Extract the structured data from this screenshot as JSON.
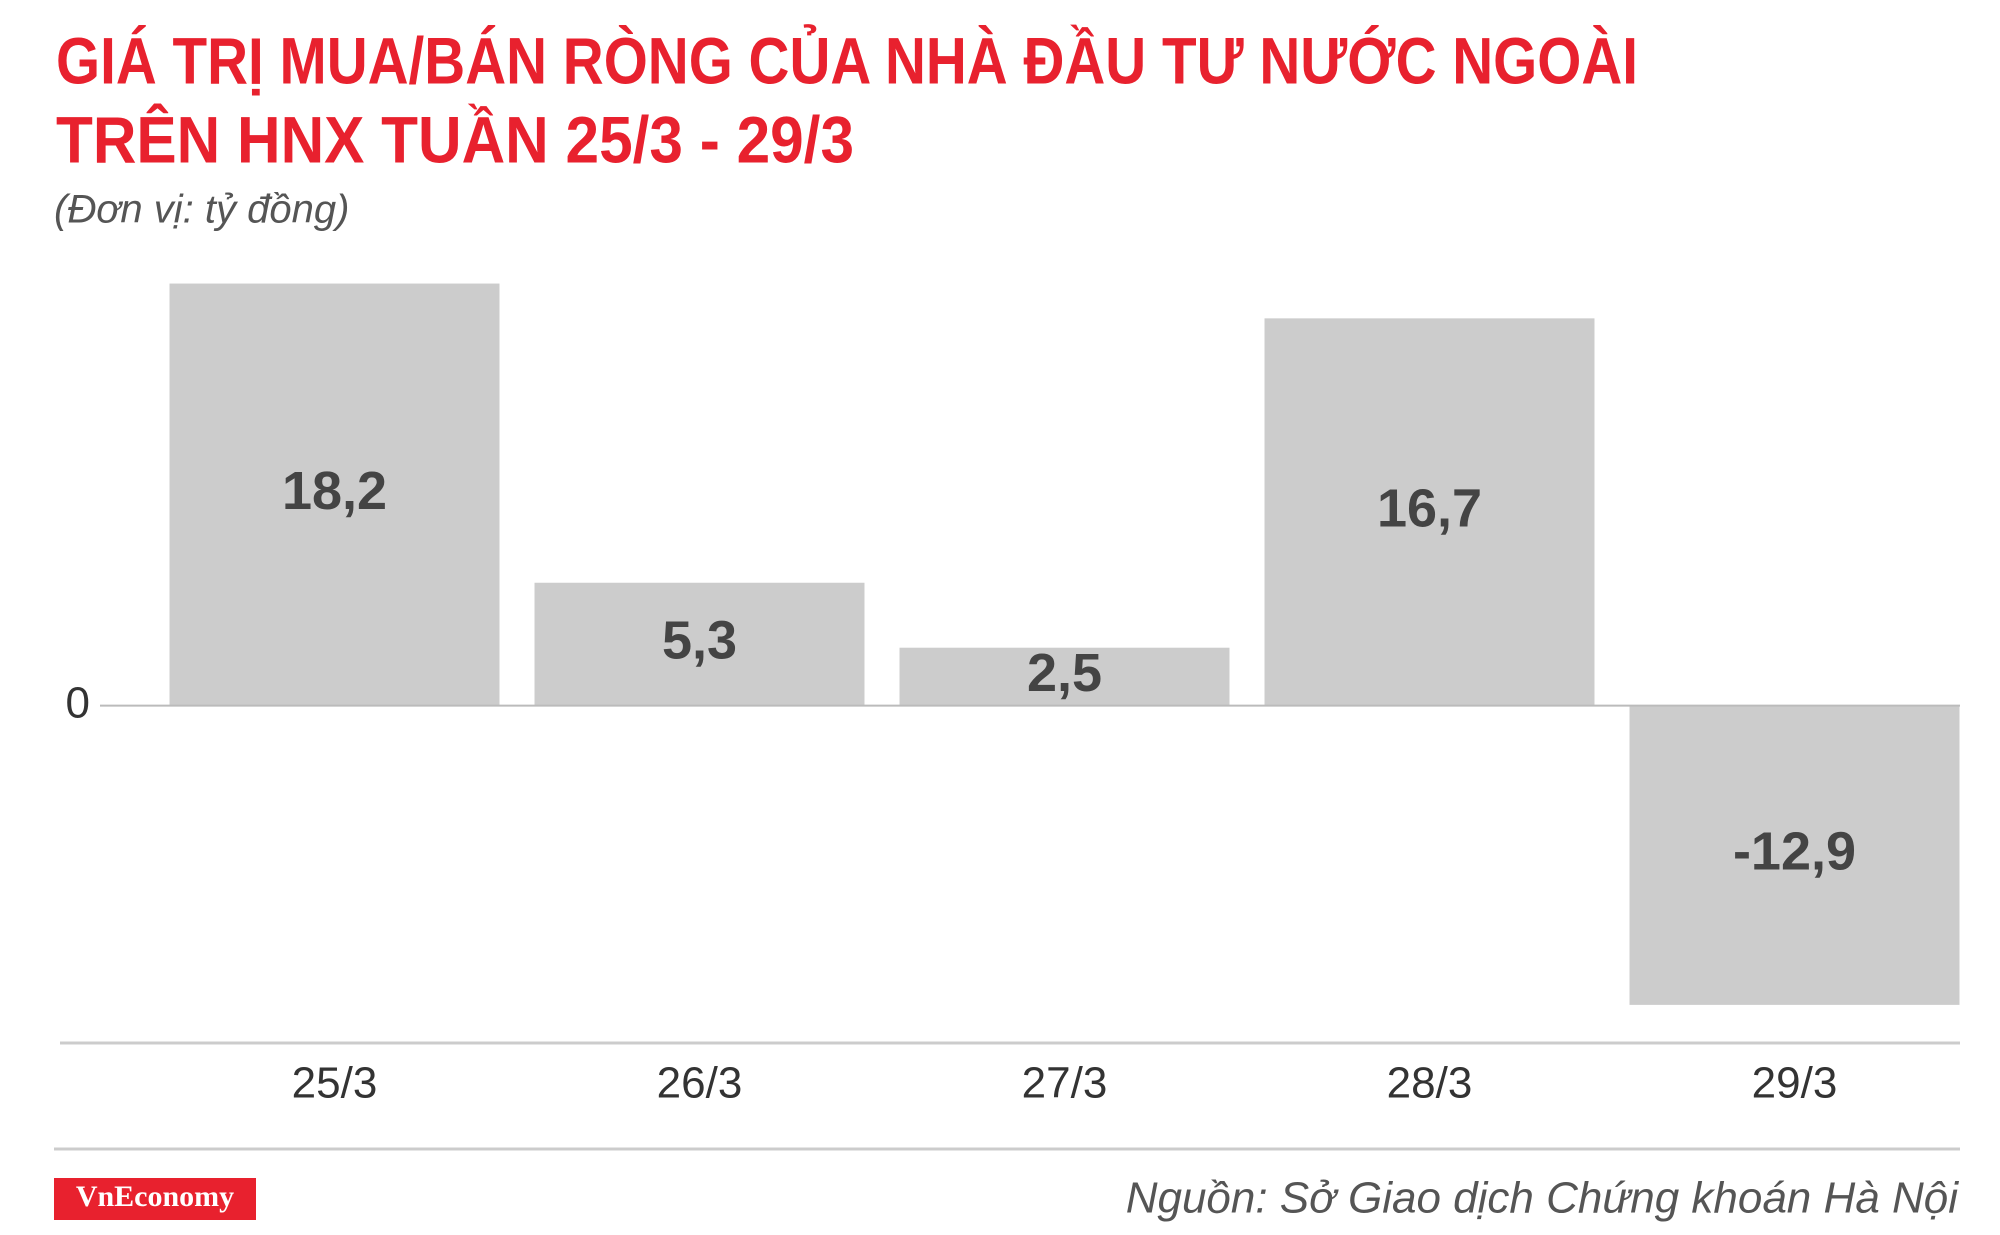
{
  "chart_data": {
    "type": "bar",
    "title": [
      "GIÁ TRỊ MUA/BÁN RÒNG CỦA NHÀ ĐẦU TƯ NƯỚC NGOÀI",
      "TRÊN HNX TUẦN 25/3 - 29/3"
    ],
    "subtitle": "(Đơn vị: tỷ đồng)",
    "categories": [
      "25/3",
      "26/3",
      "27/3",
      "28/3",
      "29/3"
    ],
    "values": [
      18.2,
      5.3,
      2.5,
      16.7,
      -12.9
    ],
    "value_labels": [
      "18,2",
      "5,3",
      "2,5",
      "16,7",
      "-12,9"
    ],
    "color": "#cccccc",
    "ylim": [
      -14.5,
      19
    ],
    "yticks": [
      0
    ],
    "source": "Nguồn: Sở Giao dịch Chứng khoán Hà Nội",
    "logo": "VnEconomy"
  }
}
